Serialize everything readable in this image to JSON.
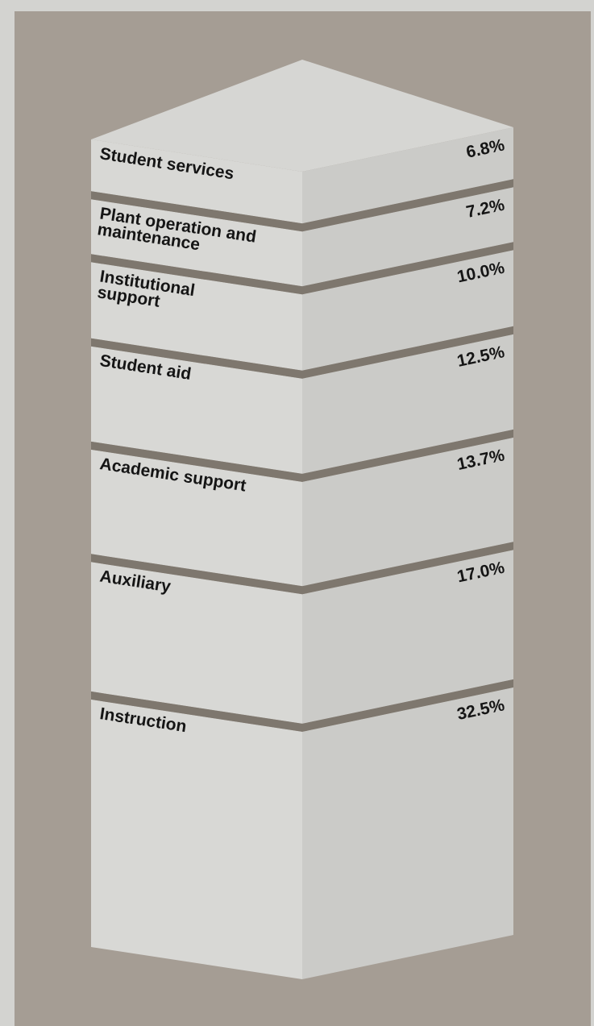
{
  "chart_data": {
    "type": "bar",
    "stacked": true,
    "orientation": "vertical",
    "style": "3d-stacked-column",
    "unit": "%",
    "categories": [
      "Student services",
      "Plant operation and maintenance",
      "Institutional support",
      "Student aid",
      "Academic support",
      "Auxiliary",
      "Instruction"
    ],
    "label_lines": [
      [
        "Student services"
      ],
      [
        "Plant operation and",
        "maintenance"
      ],
      [
        "Institutional",
        "support"
      ],
      [
        "Student aid"
      ],
      [
        "Academic support"
      ],
      [
        "Auxiliary"
      ],
      [
        "Instruction"
      ]
    ],
    "values": [
      6.8,
      7.2,
      10.0,
      12.5,
      13.7,
      17.0,
      32.5
    ],
    "value_labels": [
      "6.8%",
      "7.2%",
      "10.0%",
      "12.5%",
      "13.7%",
      "17.0%",
      "32.5%"
    ],
    "colors": {
      "background": "#d3d3d0",
      "panel": "#a59d94",
      "face_left": "#d8d8d5",
      "face_right": "#cbcbc8",
      "top_face": "#d6d6d3",
      "divider": "#7e776e",
      "text": "#151515"
    },
    "legend": "none",
    "grid": false
  }
}
